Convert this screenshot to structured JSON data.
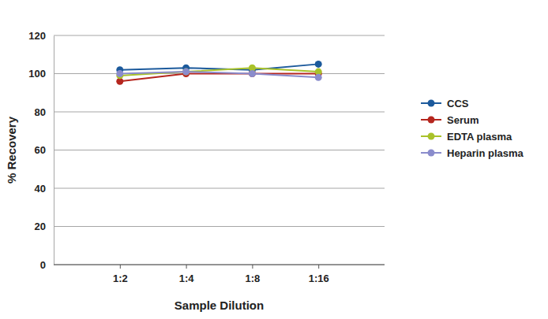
{
  "chart_data": {
    "type": "line",
    "xlabel": "Sample Dilution",
    "ylabel": "% Recovery",
    "categories": [
      "1:2",
      "1:4",
      "1:8",
      "1:16"
    ],
    "series": [
      {
        "name": "CCS",
        "color": "#1c5a9c",
        "marker": "circle",
        "values": [
          102,
          103,
          102,
          105
        ]
      },
      {
        "name": "Serum",
        "color": "#b5261e",
        "marker": "circle",
        "values": [
          96,
          100,
          100,
          100
        ]
      },
      {
        "name": "EDTA plasma",
        "color": "#a9c22a",
        "marker": "circle",
        "values": [
          99,
          101,
          103,
          101
        ]
      },
      {
        "name": "Heparin plasma",
        "color": "#8a8ccc",
        "marker": "circle",
        "values": [
          100,
          101,
          100,
          98
        ]
      }
    ],
    "ylim": [
      0,
      120
    ],
    "yticks": [
      0,
      20,
      40,
      60,
      80,
      100,
      120
    ],
    "grid": true,
    "legend": "right"
  }
}
